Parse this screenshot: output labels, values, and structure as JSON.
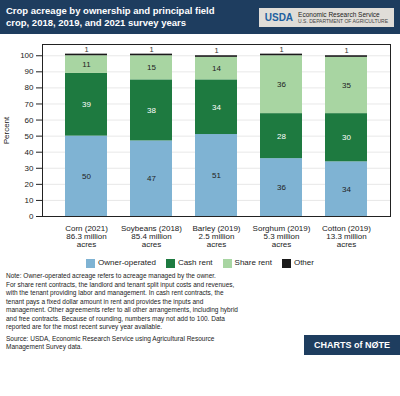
{
  "chart_data": {
    "type": "bar",
    "title": "Crop acreage by ownership and principal field\ncrop, 2018, 2019, and 2021 survey years",
    "categories": [
      "Corn (2021)",
      "Soybeans (2018)",
      "Barley (2019)",
      "Sorghum (2019)",
      "Cotton (2019)"
    ],
    "series": [
      {
        "name": "Owner-operated",
        "color": "#7fb3d3",
        "values": [
          50,
          47,
          51,
          36,
          34
        ]
      },
      {
        "name": "Cash rent",
        "color": "#1e7a40",
        "values": [
          39,
          38,
          34,
          28,
          30
        ]
      },
      {
        "name": "Share rent",
        "color": "#a8d5a2",
        "values": [
          11,
          15,
          14,
          36,
          35
        ]
      },
      {
        "name": "Other",
        "color": "#1a1a1a",
        "values": [
          1,
          1,
          1,
          1,
          1
        ]
      }
    ],
    "ylabel": "Percent",
    "ylim": [
      0,
      107
    ],
    "yticks": [
      0,
      10,
      20,
      30,
      40,
      50,
      60,
      70,
      80,
      90,
      100
    ],
    "grid": true,
    "stacked": true,
    "data_labels": true,
    "legend": "bottom",
    "annotations": [
      {
        "text": "USDA"
      },
      {
        "text": "Economic Research Service"
      },
      {
        "text": "U.S. DEPARTMENT OF AGRICULTURE"
      },
      {
        "text": "Note: Owner-operated acreage refers to acreage managed by the owner.\nFor share rent contracts, the landlord and tenant split input costs and revenues,\nwith the tenant providing labor and management. In cash rent contracts, the\ntenant pays a fixed dollar amount in rent and provides the inputs and\nmanagement. Other agreements refer to all other arrangements, including hybrid\nand free contracts. Because of rounding, numbers may not add to 100. Data\nreported are for the most recent survey year available."
      },
      {
        "text": "Source: USDA, Economic Research Service using Agricultural Resource\nManagement Survey data."
      },
      {
        "text": "CHARTS of NØTE"
      },
      {
        "text": "86.3 million\nacres",
        "category": "Corn (2021)"
      },
      {
        "text": "85.4 million\nacres",
        "category": "Soybeans (2018)"
      },
      {
        "text": "2.5 million\nacres",
        "category": "Barley (2019)"
      },
      {
        "text": "5.3 million\nacres",
        "category": "Sorghum (2019)"
      },
      {
        "text": "13.3 million\nacres",
        "category": "Cotton (2019)"
      }
    ]
  }
}
